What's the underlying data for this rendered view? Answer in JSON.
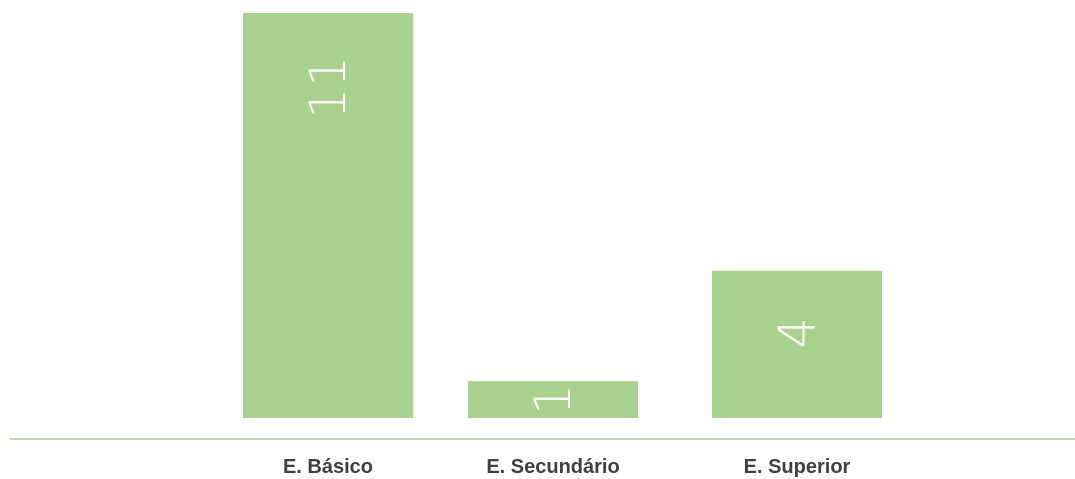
{
  "chart_data": {
    "type": "bar",
    "categories": [
      "E. Básico",
      "E. Secundário",
      "E. Superior"
    ],
    "values": [
      11,
      1,
      4
    ],
    "data_labels": [
      "11",
      "1",
      "4"
    ],
    "title": "",
    "xlabel": "",
    "ylabel": "",
    "ylim": [
      0,
      11
    ],
    "grid": false,
    "legend": "none",
    "bar_color": "#a9d18e",
    "axis_color": "#a9d18e",
    "data_label_color": "#ffffff",
    "category_label_color": "#404040"
  }
}
